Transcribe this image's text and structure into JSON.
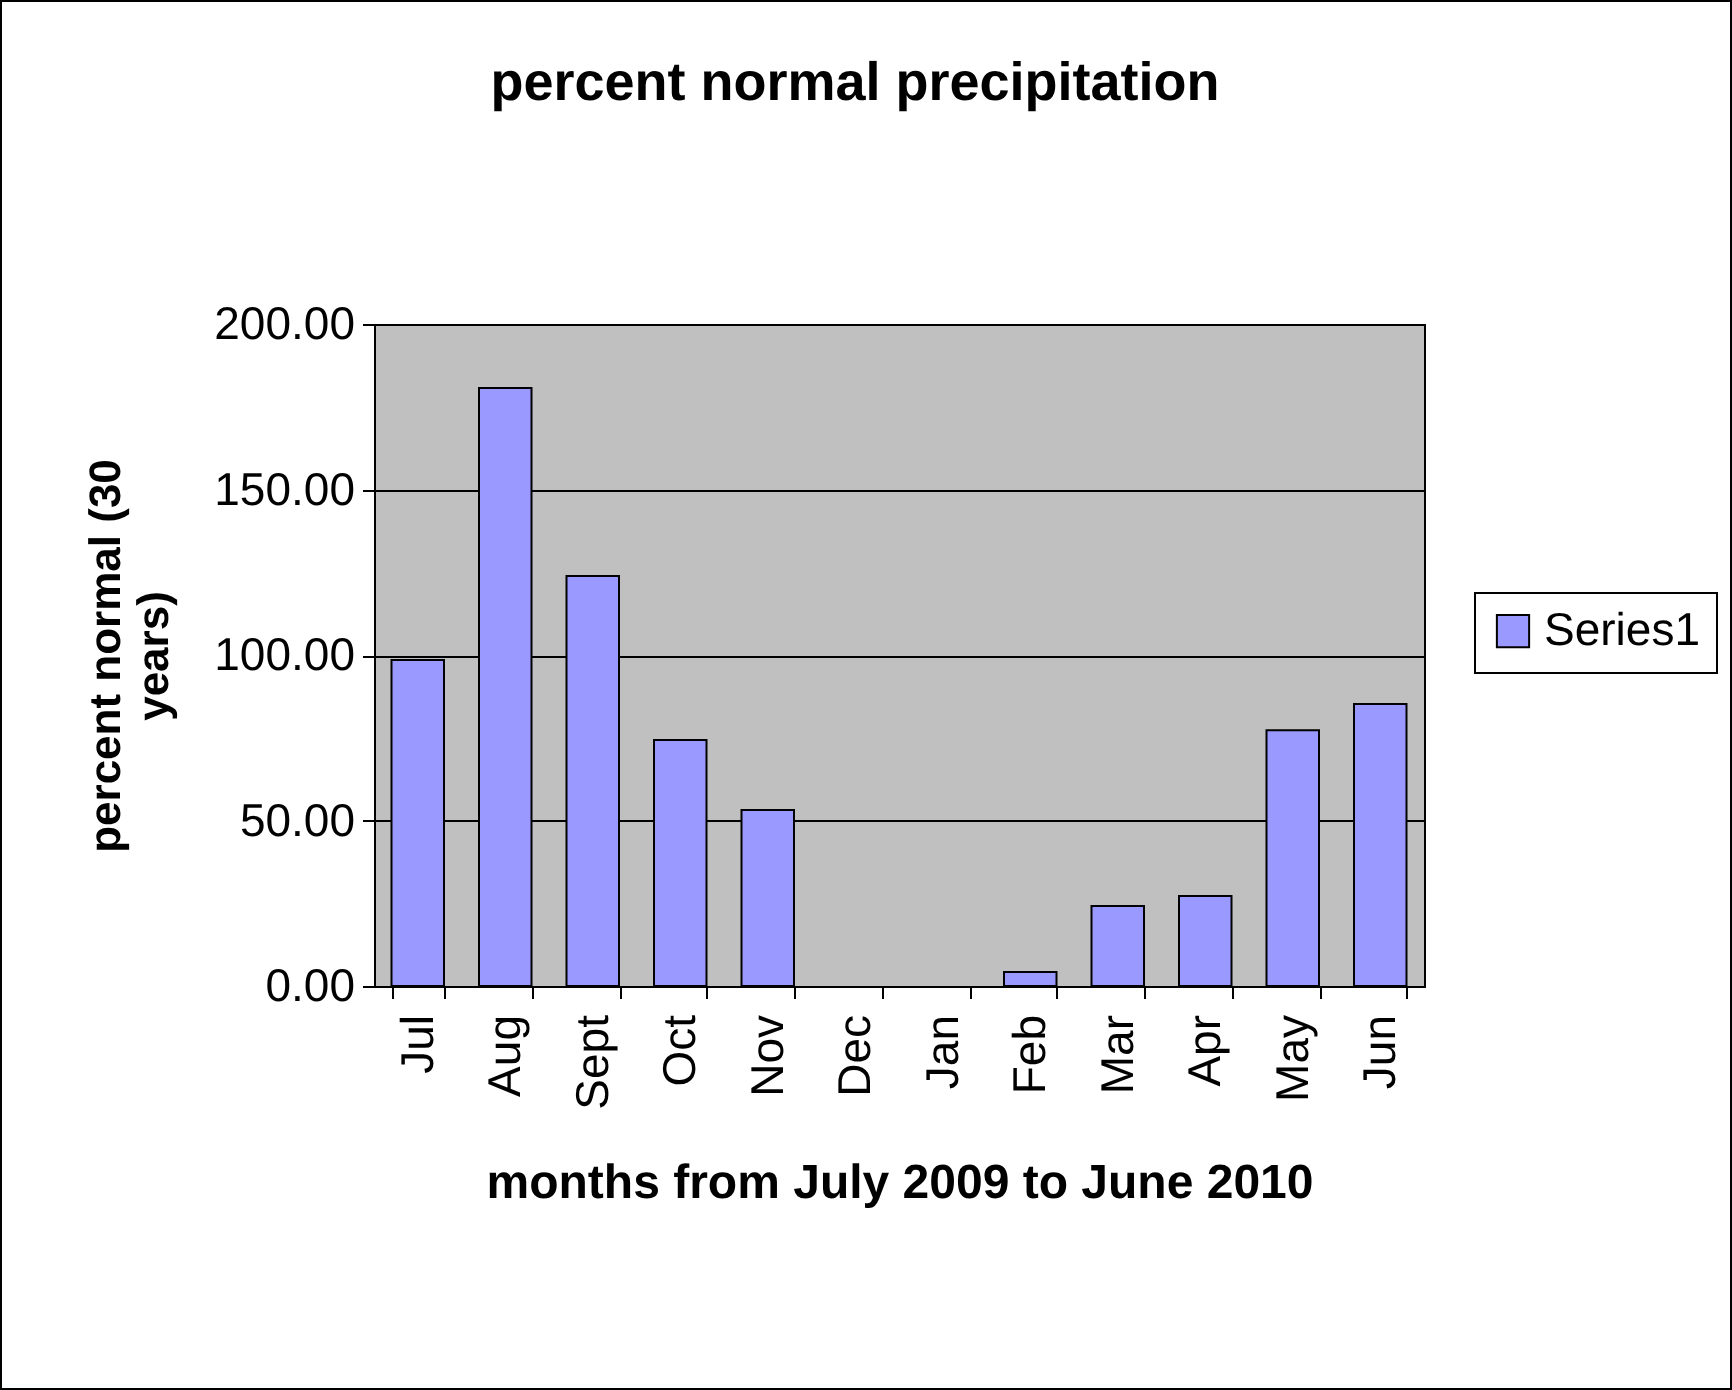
{
  "chart_data": {
    "type": "bar",
    "title": "percent normal precipitation",
    "xlabel": "months from July 2009 to June 2010",
    "ylabel": "percent normal (30 years)",
    "categories": [
      "Jul",
      "Aug",
      "Sept",
      "Oct",
      "Nov",
      "Dec",
      "Jan",
      "Feb",
      "Mar",
      "Apr",
      "May",
      "Jun"
    ],
    "series": [
      {
        "name": "Series1",
        "color": "#9999ff",
        "values": [
          98.5,
          180.7,
          123.9,
          74.3,
          53.2,
          0,
          0,
          4.2,
          24.2,
          27.2,
          77.3,
          85.2
        ]
      }
    ],
    "ylim": [
      0,
      200
    ],
    "yticks": [
      {
        "value": 0,
        "label": "0.00"
      },
      {
        "value": 50,
        "label": "50.00"
      },
      {
        "value": 100,
        "label": "100.00"
      },
      {
        "value": 150,
        "label": "150.00"
      },
      {
        "value": 200,
        "label": "200.00"
      }
    ],
    "grid": "y",
    "legend": "right"
  }
}
